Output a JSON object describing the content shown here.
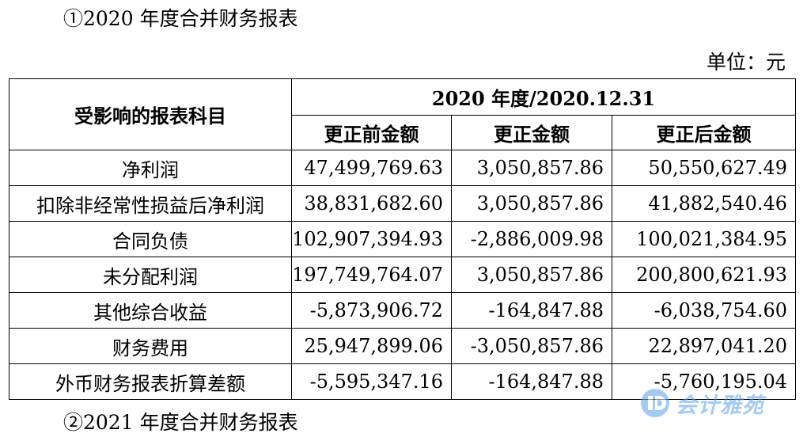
{
  "heading_2020": "①2020 年度合并财务报表",
  "unit": "单位：元",
  "table": {
    "row_header": "受影响的报表科目",
    "group_header": "2020 年度/2020.12.31",
    "columns": [
      "更正前金额",
      "更正金额",
      "更正后金额"
    ],
    "rows": [
      {
        "label": "净利润",
        "values": [
          "47,499,769.63",
          "3,050,857.86",
          "50,550,627.49"
        ]
      },
      {
        "label": "扣除非经常性损益后净利润",
        "values": [
          "38,831,682.60",
          "3,050,857.86",
          "41,882,540.46"
        ]
      },
      {
        "label": "合同负债",
        "values": [
          "102,907,394.93",
          "-2,886,009.98",
          "100,021,384.95"
        ]
      },
      {
        "label": "未分配利润",
        "values": [
          "197,749,764.07",
          "3,050,857.86",
          "200,800,621.93"
        ]
      },
      {
        "label": "其他综合收益",
        "values": [
          "-5,873,906.72",
          "-164,847.88",
          "-6,038,754.60"
        ]
      },
      {
        "label": "财务费用",
        "values": [
          "25,947,899.06",
          "-3,050,857.86",
          "22,897,041.20"
        ]
      },
      {
        "label": "外币财务报表折算差额",
        "values": [
          "-5,595,347.16",
          "-164,847.88",
          "-5,760,195.04"
        ]
      }
    ]
  },
  "heading_2021": "②2021 年度合并财务报表",
  "watermark": {
    "text": "会计雅苑",
    "icon": "brand-logo-icon",
    "color": "#5aa0e6"
  }
}
